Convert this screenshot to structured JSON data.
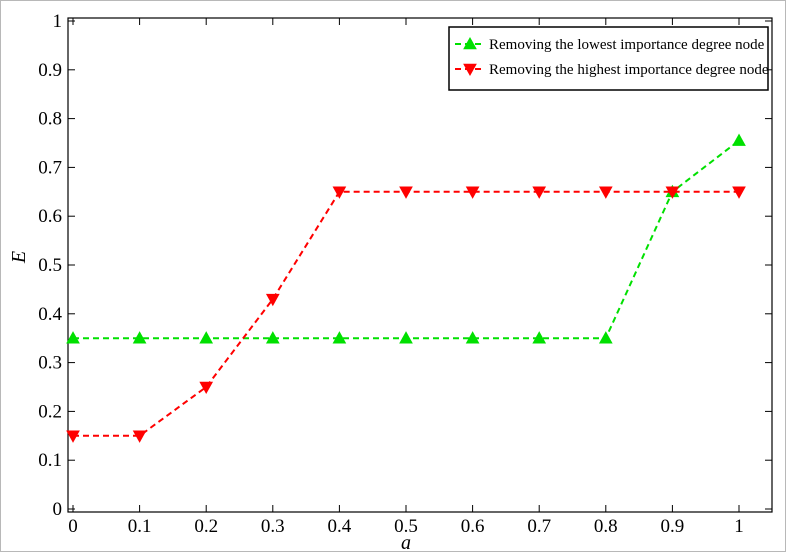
{
  "chart_data": {
    "type": "line",
    "title": "",
    "xlabel": "a",
    "ylabel": "E",
    "xlim": [
      0,
      1
    ],
    "ylim": [
      0,
      1
    ],
    "xticks": [
      0,
      0.1,
      0.2,
      0.3,
      0.4,
      0.5,
      0.6,
      0.7,
      0.8,
      0.9,
      1
    ],
    "yticks": [
      0,
      0.1,
      0.2,
      0.3,
      0.4,
      0.5,
      0.6,
      0.7,
      0.8,
      0.9,
      1
    ],
    "x_tick_labels": [
      "0",
      "0.1",
      "0.2",
      "0.3",
      "0.4",
      "0.5",
      "0.6",
      "0.7",
      "0.8",
      "0.9",
      "1"
    ],
    "y_tick_labels": [
      "0",
      "0.1",
      "0.2",
      "0.3",
      "0.4",
      "0.5",
      "0.6",
      "0.7",
      "0.8",
      "0.9",
      "1"
    ],
    "grid": false,
    "legend_position": "top-right",
    "x": [
      0,
      0.1,
      0.2,
      0.3,
      0.4,
      0.5,
      0.6,
      0.7,
      0.8,
      0.9,
      1
    ],
    "series": [
      {
        "name": "Removing the lowest importance degree node",
        "color": "#00e000",
        "marker": "triangle-up",
        "line_style": "dashed",
        "values": [
          0.35,
          0.35,
          0.35,
          0.35,
          0.35,
          0.35,
          0.35,
          0.35,
          0.35,
          0.65,
          0.755
        ]
      },
      {
        "name": "Removing the highest importance degree node",
        "color": "#ff0000",
        "marker": "triangle-down",
        "line_style": "dashed",
        "values": [
          0.15,
          0.15,
          0.25,
          0.43,
          0.65,
          0.65,
          0.65,
          0.65,
          0.65,
          0.65,
          0.65
        ]
      }
    ]
  }
}
